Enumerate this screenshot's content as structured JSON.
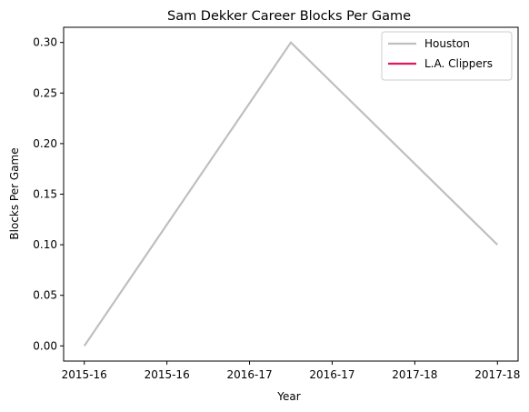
{
  "chart_data": {
    "type": "line",
    "title": "Sam Dekker Career Blocks Per Game",
    "xlabel": "Year",
    "ylabel": "Blocks Per Game",
    "x_tick_labels": [
      "2015-16",
      "2015-16",
      "2016-17",
      "2016-17",
      "2017-18",
      "2017-18"
    ],
    "y_ticks": [
      0.0,
      0.05,
      0.1,
      0.15,
      0.2,
      0.25,
      0.3
    ],
    "y_tick_labels": [
      "0.00",
      "0.05",
      "0.10",
      "0.15",
      "0.20",
      "0.25",
      "0.30"
    ],
    "xlim": [
      -0.1,
      2.1
    ],
    "ylim": [
      -0.015,
      0.315
    ],
    "grid": false,
    "legend_position": "top-right",
    "series": [
      {
        "name": "Houston",
        "color": "#bfbfbf",
        "points": [
          {
            "x": 0,
            "y": 0.0
          },
          {
            "x": 1,
            "y": 0.3
          },
          {
            "x": 2,
            "y": 0.1
          }
        ]
      },
      {
        "name": "L.A. Clippers",
        "color": "#e0185c",
        "points": []
      }
    ]
  }
}
